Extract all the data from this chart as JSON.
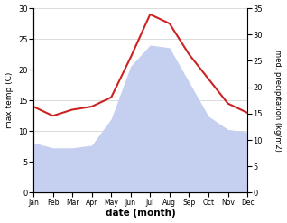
{
  "months": [
    "Jan",
    "Feb",
    "Mar",
    "Apr",
    "May",
    "Jun",
    "Jul",
    "Aug",
    "Sep",
    "Oct",
    "Nov",
    "Dec"
  ],
  "max_temp": [
    14.0,
    12.5,
    13.5,
    14.0,
    15.5,
    22.0,
    29.0,
    27.5,
    22.5,
    18.5,
    14.5,
    13.0
  ],
  "precipitation": [
    9.5,
    8.5,
    8.5,
    9.0,
    14.0,
    24.0,
    28.0,
    27.5,
    21.0,
    14.5,
    12.0,
    11.5
  ],
  "temp_color": "#cc2222",
  "precip_fill_color": "#c5cff0",
  "temp_ylim": [
    0,
    30
  ],
  "precip_ylim": [
    0,
    35
  ],
  "temp_yticks": [
    0,
    5,
    10,
    15,
    20,
    25,
    30
  ],
  "precip_yticks": [
    0,
    5,
    10,
    15,
    20,
    25,
    30,
    35
  ],
  "ylabel_left": "max temp (C)",
  "ylabel_right": "med. precipitation (kg/m2)",
  "xlabel": "date (month)",
  "figsize": [
    3.18,
    2.47
  ],
  "dpi": 100
}
